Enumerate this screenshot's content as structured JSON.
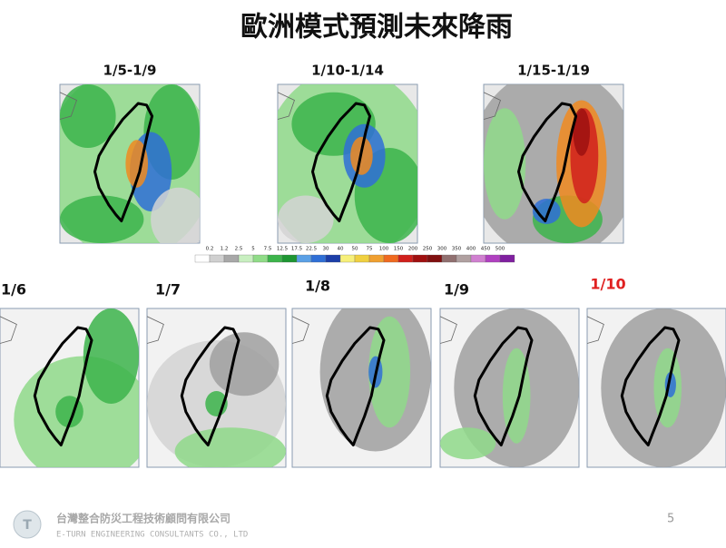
{
  "header": {
    "title": "歐洲模式預測未來降雨"
  },
  "top_maps": [
    {
      "label": "1/5-1/9"
    },
    {
      "label": "1/10-1/14"
    },
    {
      "label": "1/15-1/19"
    }
  ],
  "color_scale": {
    "ticks": [
      0.2,
      1.2,
      2.5,
      5,
      7.5,
      12.5,
      17.5,
      22.5,
      30,
      40,
      50,
      75,
      100,
      150,
      200,
      250,
      300,
      350,
      400,
      450,
      500
    ]
  },
  "bottom_maps": [
    {
      "label": "1/6"
    },
    {
      "label": "1/7"
    },
    {
      "label": "1/8"
    },
    {
      "label": "1/9"
    },
    {
      "label": "1/10"
    }
  ],
  "footer": {
    "company": "台灣整合防災工程技術顧問有限公司",
    "company_en": "E-TURN ENGINEERING CONSULTANTS CO., LTD",
    "page": "5"
  }
}
